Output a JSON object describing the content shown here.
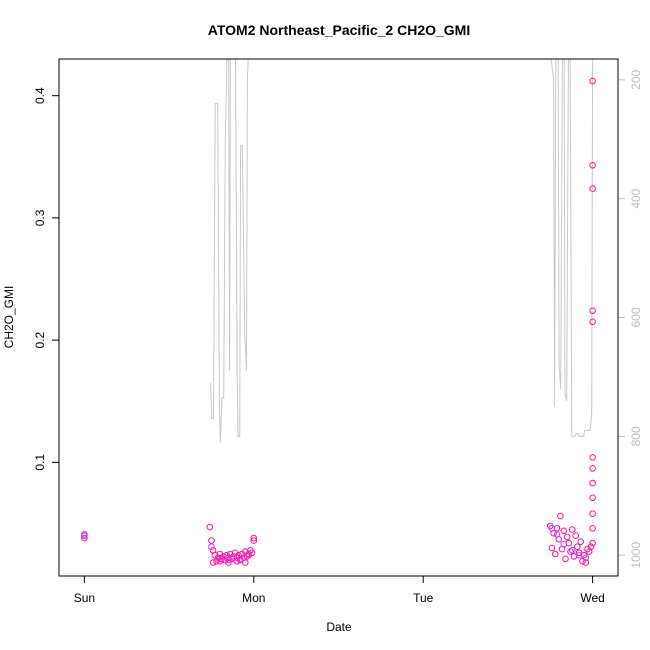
{
  "chart_data": {
    "type": "scatter",
    "title": "ATOM2 Northeast_Pacific_2 CH2O_GMI",
    "xlabel": "Date",
    "ylabel": "CH2O_GMI",
    "x_unit": "days (Sun 00:00 = 0)",
    "xlim": [
      -0.15,
      3.15
    ],
    "ylim": [
      0.007,
      0.43
    ],
    "x_ticks": [
      {
        "value": 0,
        "label": "Sun"
      },
      {
        "value": 1,
        "label": "Mon"
      },
      {
        "value": 2,
        "label": "Tue"
      },
      {
        "value": 3,
        "label": "Wed"
      }
    ],
    "y_ticks": [
      {
        "value": 0.1,
        "label": "0.1"
      },
      {
        "value": 0.2,
        "label": "0.2"
      },
      {
        "value": 0.3,
        "label": "0.3"
      },
      {
        "value": 0.4,
        "label": "0.4"
      }
    ],
    "right_axis": {
      "reversed": true,
      "ylim": [
        1035,
        165
      ],
      "ticks": [
        {
          "value": 200,
          "label": "200"
        },
        {
          "value": 400,
          "label": "400"
        },
        {
          "value": 600,
          "label": "600"
        },
        {
          "value": 800,
          "label": "800"
        },
        {
          "value": 1000,
          "label": "1000"
        }
      ]
    },
    "colors": {
      "primary": "#ff1493",
      "secondary": "#cc33ff",
      "line": "#c8c8c8"
    },
    "series": [
      {
        "role": "scatter-primary",
        "points": [
          [
            0.0,
            0.04
          ],
          [
            0.0,
            0.038
          ],
          [
            0.74,
            0.047
          ],
          [
            0.75,
            0.036
          ],
          [
            0.76,
            0.028
          ],
          [
            0.77,
            0.024
          ],
          [
            0.78,
            0.019
          ],
          [
            0.79,
            0.022
          ],
          [
            0.8,
            0.025
          ],
          [
            0.81,
            0.021
          ],
          [
            0.82,
            0.023
          ],
          [
            0.83,
            0.02
          ],
          [
            0.84,
            0.024
          ],
          [
            0.85,
            0.022
          ],
          [
            0.86,
            0.025
          ],
          [
            0.87,
            0.021
          ],
          [
            0.88,
            0.023
          ],
          [
            0.89,
            0.026
          ],
          [
            0.9,
            0.022
          ],
          [
            0.91,
            0.024
          ],
          [
            0.92,
            0.02
          ],
          [
            0.93,
            0.025
          ],
          [
            0.94,
            0.022
          ],
          [
            0.95,
            0.027
          ],
          [
            0.96,
            0.023
          ],
          [
            0.97,
            0.025
          ],
          [
            0.98,
            0.028
          ],
          [
            0.99,
            0.026
          ],
          [
            1.0,
            0.038
          ],
          [
            1.0,
            0.036
          ],
          [
            0.76,
            0.018
          ],
          [
            0.8,
            0.019
          ],
          [
            0.85,
            0.018
          ],
          [
            0.9,
            0.019
          ],
          [
            0.95,
            0.018
          ],
          [
            2.75,
            0.048
          ],
          [
            2.76,
            0.03
          ],
          [
            2.77,
            0.042
          ],
          [
            2.78,
            0.025
          ],
          [
            2.79,
            0.046
          ],
          [
            2.8,
            0.037
          ],
          [
            2.81,
            0.056
          ],
          [
            2.82,
            0.029
          ],
          [
            2.83,
            0.044
          ],
          [
            2.84,
            0.021
          ],
          [
            2.85,
            0.039
          ],
          [
            2.86,
            0.034
          ],
          [
            2.87,
            0.027
          ],
          [
            2.88,
            0.045
          ],
          [
            2.89,
            0.023
          ],
          [
            2.9,
            0.04
          ],
          [
            2.91,
            0.031
          ],
          [
            2.92,
            0.026
          ],
          [
            2.93,
            0.035
          ],
          [
            2.94,
            0.019
          ],
          [
            2.95,
            0.024
          ],
          [
            2.96,
            0.018
          ],
          [
            2.97,
            0.029
          ],
          [
            2.98,
            0.027
          ],
          [
            2.99,
            0.031
          ],
          [
            3.0,
            0.412
          ],
          [
            3.0,
            0.343
          ],
          [
            3.0,
            0.324
          ],
          [
            3.0,
            0.224
          ],
          [
            3.0,
            0.215
          ],
          [
            3.0,
            0.104
          ],
          [
            3.0,
            0.095
          ],
          [
            3.0,
            0.083
          ],
          [
            3.0,
            0.071
          ],
          [
            3.0,
            0.058
          ],
          [
            3.0,
            0.046
          ],
          [
            3.0,
            0.034
          ]
        ]
      },
      {
        "role": "scatter-secondary",
        "points": [
          [
            0.0,
            0.041
          ],
          [
            0.75,
            0.031
          ],
          [
            0.8,
            0.021
          ],
          [
            0.85,
            0.02
          ],
          [
            0.88,
            0.022
          ],
          [
            0.92,
            0.021
          ],
          [
            0.97,
            0.024
          ],
          [
            2.76,
            0.046
          ],
          [
            2.79,
            0.041
          ],
          [
            2.83,
            0.033
          ],
          [
            2.88,
            0.028
          ],
          [
            2.92,
            0.024
          ],
          [
            2.96,
            0.022
          ]
        ]
      },
      {
        "role": "line-right-axis",
        "points": [
          [
            0.745,
            710
          ],
          [
            0.752,
            770
          ],
          [
            0.762,
            770
          ],
          [
            0.772,
            240
          ],
          [
            0.787,
            240
          ],
          [
            0.797,
            750
          ],
          [
            0.802,
            810
          ],
          [
            0.812,
            735
          ],
          [
            0.822,
            735
          ],
          [
            0.832,
            300
          ],
          [
            0.842,
            165
          ],
          [
            0.852,
            165
          ],
          [
            0.857,
            690
          ],
          [
            0.862,
            165
          ],
          [
            0.872,
            165
          ],
          [
            0.882,
            165
          ],
          [
            0.892,
            165
          ],
          [
            0.902,
            700
          ],
          [
            0.907,
            800
          ],
          [
            0.917,
            800
          ],
          [
            0.922,
            310
          ],
          [
            0.932,
            310
          ],
          [
            0.947,
            630
          ],
          [
            0.957,
            690
          ],
          [
            0.962,
            200
          ],
          [
            0.967,
            165
          ],
          [
            0.972,
            165
          ],
          [
            0.995,
            165
          ],
          [
            2.73,
            165
          ],
          [
            2.755,
            165
          ],
          [
            2.77,
            200
          ],
          [
            2.776,
            750
          ],
          [
            2.783,
            165
          ],
          [
            2.797,
            165
          ],
          [
            2.802,
            680
          ],
          [
            2.812,
            720
          ],
          [
            2.822,
            165
          ],
          [
            2.832,
            165
          ],
          [
            2.837,
            730
          ],
          [
            2.847,
            740
          ],
          [
            2.857,
            165
          ],
          [
            2.867,
            165
          ],
          [
            2.877,
            800
          ],
          [
            2.882,
            800
          ],
          [
            2.897,
            800
          ],
          [
            2.902,
            795
          ],
          [
            2.912,
            795
          ],
          [
            2.922,
            800
          ],
          [
            2.927,
            800
          ],
          [
            2.937,
            800
          ],
          [
            2.947,
            800
          ],
          [
            2.952,
            790
          ],
          [
            2.957,
            790
          ],
          [
            2.962,
            790
          ],
          [
            2.967,
            790
          ],
          [
            2.972,
            790
          ],
          [
            2.977,
            790
          ],
          [
            2.985,
            790
          ],
          [
            2.995,
            760
          ],
          [
            3.0,
            165
          ]
        ]
      }
    ]
  }
}
